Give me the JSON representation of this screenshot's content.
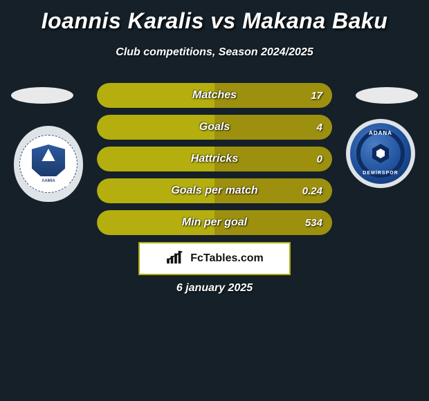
{
  "title": "Ioannis Karalis vs Makana Baku",
  "subtitle": "Club competitions, Season 2024/2025",
  "colors": {
    "background": "#152029",
    "bar_base": "#b4af0e",
    "bar_darker": "#9d900e",
    "brand_border": "#aeae10"
  },
  "team_left": {
    "label": "ΛΑΜΙΑ",
    "ring_color": "#2a4e86",
    "shield_gradient_top": "#2e5aa0",
    "shield_gradient_bottom": "#16335f"
  },
  "team_right": {
    "top_text": "ADANA",
    "bottom_text": "DEMİRSPOR",
    "bg_gradient_inner": "#4a7dc5",
    "bg_gradient_mid": "#1e4f9a",
    "bg_gradient_outer": "#0c2b5e"
  },
  "stats": [
    {
      "label": "Matches",
      "right_value": "17",
      "right_fill_pct": 50
    },
    {
      "label": "Goals",
      "right_value": "4",
      "right_fill_pct": 50
    },
    {
      "label": "Hattricks",
      "right_value": "0",
      "right_fill_pct": 50
    },
    {
      "label": "Goals per match",
      "right_value": "0.24",
      "right_fill_pct": 50
    },
    {
      "label": "Min per goal",
      "right_value": "534",
      "right_fill_pct": 50
    }
  ],
  "brand": "FcTables.com",
  "date": "6 january 2025"
}
